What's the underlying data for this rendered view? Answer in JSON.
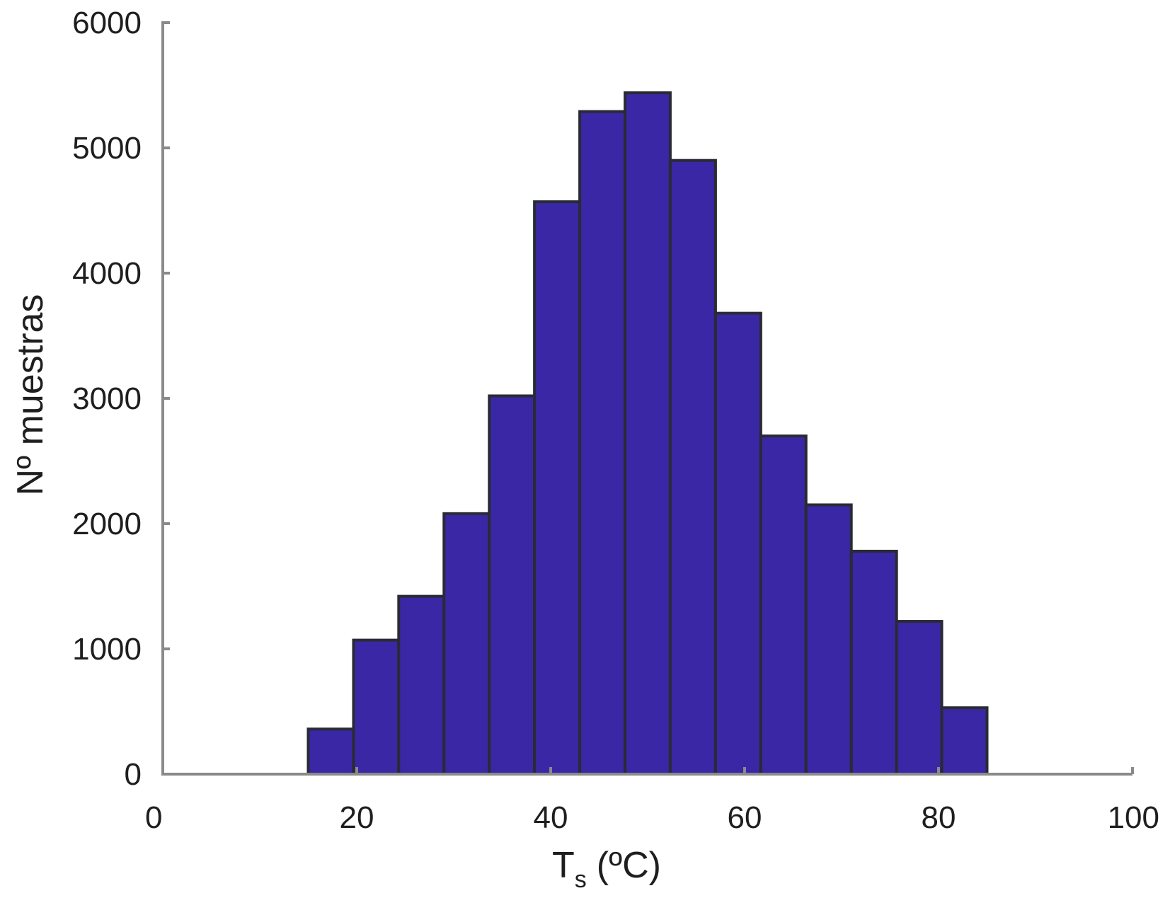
{
  "chart_data": {
    "type": "bar",
    "bin_edges": [
      15,
      19.67,
      24.33,
      29,
      33.67,
      38.33,
      43,
      47.67,
      52.33,
      57,
      61.67,
      66.33,
      71,
      75.67,
      80.33,
      85
    ],
    "values": [
      360,
      1070,
      1420,
      2080,
      3020,
      4570,
      5290,
      5440,
      4900,
      3680,
      2700,
      2150,
      1780,
      1220,
      530
    ],
    "xlabel": "T",
    "xlabel_subscript": "s",
    "xlabel_unit": "(ºC)",
    "ylabel": "Nº muestras",
    "xlim": [
      0,
      100
    ],
    "ylim": [
      0,
      6000
    ],
    "xticks": [
      0,
      20,
      40,
      60,
      80,
      100
    ],
    "yticks": [
      0,
      1000,
      2000,
      3000,
      4000,
      5000,
      6000
    ],
    "grid": false,
    "bar_color": "#3a27a5",
    "edge_color": "#2a2a35",
    "axis_color": "#8a8a8a"
  }
}
